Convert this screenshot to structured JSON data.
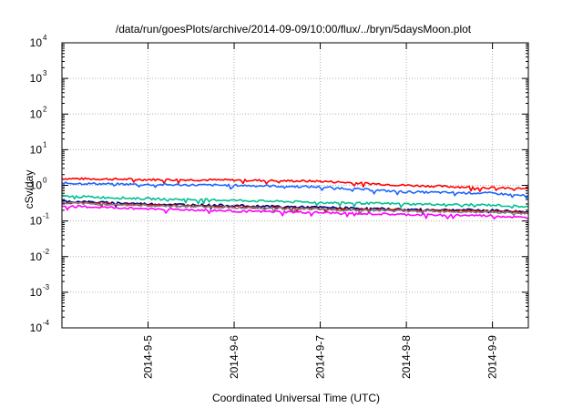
{
  "chart_data": {
    "type": "line",
    "title": "/data/run/goesPlots/archive/2014-09-09/10:00/flux/../bryn/5daysMoon.plot",
    "xlabel": "Coordinated Universal Time (UTC)",
    "ylabel": "cSv/day",
    "y_scale": "log",
    "ylim": [
      0.0001,
      10000
    ],
    "y_ticks": [
      {
        "base": "10",
        "exp": "-4"
      },
      {
        "base": "10",
        "exp": "-3"
      },
      {
        "base": "10",
        "exp": "-2"
      },
      {
        "base": "10",
        "exp": "-1"
      },
      {
        "base": "10",
        "exp": "0"
      },
      {
        "base": "10",
        "exp": "1"
      },
      {
        "base": "10",
        "exp": "2"
      },
      {
        "base": "10",
        "exp": "3"
      },
      {
        "base": "10",
        "exp": "4"
      }
    ],
    "xlim": [
      "2014-09-04 00:00",
      "2014-09-09 10:00"
    ],
    "x_ticks": [
      {
        "label": "2014-9-5",
        "date": "2014-09-05"
      },
      {
        "label": "2014-9-6",
        "date": "2014-09-06"
      },
      {
        "label": "2014-9-7",
        "date": "2014-09-07"
      },
      {
        "label": "2014-9-8",
        "date": "2014-09-08"
      },
      {
        "label": "2014-9-9",
        "date": "2014-09-09"
      }
    ],
    "grid": true,
    "x": [
      "2014-09-04 00:00",
      "2014-09-05 00:00",
      "2014-09-06 00:00",
      "2014-09-07 00:00",
      "2014-09-08 00:00",
      "2014-09-09 00:00",
      "2014-09-09 10:00"
    ],
    "series": [
      {
        "color": "#ff0000",
        "values": [
          1.55,
          1.45,
          1.4,
          1.3,
          1.0,
          0.85,
          0.8
        ]
      },
      {
        "color": "#1a66ff",
        "values": [
          1.15,
          1.05,
          1.0,
          0.9,
          0.65,
          0.6,
          0.5
        ]
      },
      {
        "color": "#00c090",
        "values": [
          0.5,
          0.42,
          0.38,
          0.33,
          0.3,
          0.28,
          0.25
        ]
      },
      {
        "color": "#000080",
        "values": [
          0.36,
          0.3,
          0.27,
          0.24,
          0.21,
          0.2,
          0.18
        ]
      },
      {
        "color": "#c00000",
        "values": [
          0.33,
          0.28,
          0.25,
          0.22,
          0.2,
          0.19,
          0.17
        ]
      },
      {
        "color": "#808080",
        "values": [
          0.32,
          0.27,
          0.24,
          0.21,
          0.19,
          0.18,
          0.16
        ]
      },
      {
        "color": "#ff00ff",
        "values": [
          0.26,
          0.22,
          0.19,
          0.17,
          0.15,
          0.14,
          0.12
        ]
      }
    ]
  }
}
